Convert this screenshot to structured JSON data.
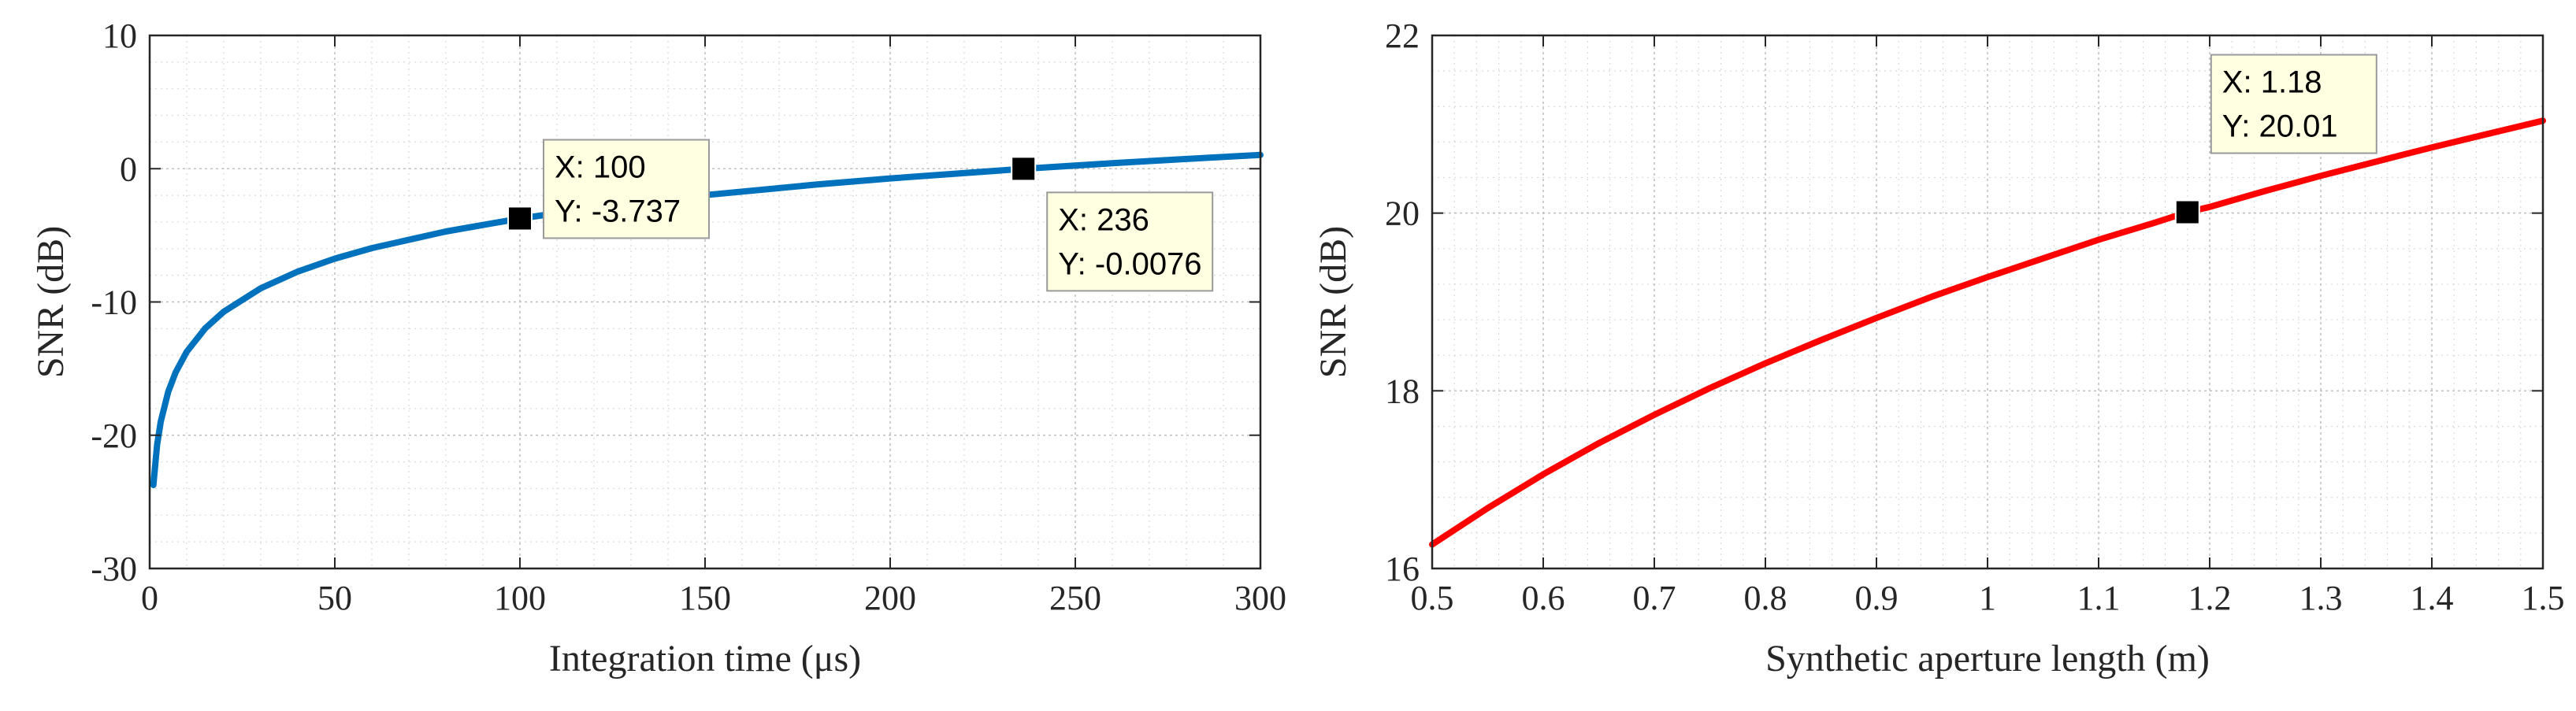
{
  "chart_data": [
    {
      "type": "line",
      "xlabel": "Integration time (μs)",
      "ylabel": "SNR (dB)",
      "xlim": [
        0,
        300
      ],
      "ylim": [
        -30,
        10
      ],
      "xticks": [
        0,
        50,
        100,
        150,
        200,
        250,
        300
      ],
      "xtick_labels": [
        "0",
        "50",
        "100",
        "150",
        "200",
        "250",
        "300"
      ],
      "yticks": [
        -30,
        -20,
        -10,
        0,
        10
      ],
      "ytick_labels": [
        "-30",
        "-20",
        "-10",
        "0",
        "10"
      ],
      "grid": true,
      "minor_grid": true,
      "series": [
        {
          "color": "#0072BD",
          "x": [
            1,
            2,
            3,
            5,
            7,
            10,
            15,
            20,
            30,
            40,
            50,
            60,
            80,
            100,
            120,
            150,
            180,
            200,
            236,
            260,
            280,
            300
          ],
          "y": [
            -23.74,
            -20.73,
            -18.97,
            -16.75,
            -15.29,
            -13.74,
            -11.98,
            -10.73,
            -8.97,
            -7.72,
            -6.75,
            -5.96,
            -4.71,
            -3.737,
            -2.95,
            -1.98,
            -1.19,
            -0.73,
            -0.0076,
            0.41,
            0.73,
            1.03
          ]
        }
      ],
      "datatips": [
        {
          "x": 100,
          "y": -3.737,
          "line1": "X: 100",
          "line2": "Y: -3.737"
        },
        {
          "x": 236,
          "y": -0.0076,
          "line1": "X: 236",
          "line2": "Y: -0.0076"
        }
      ]
    },
    {
      "type": "line",
      "xlabel": "Synthetic aperture length (m)",
      "ylabel": "SNR (dB)",
      "xlim": [
        0.5,
        1.5
      ],
      "ylim": [
        16,
        22
      ],
      "xticks": [
        0.5,
        0.6,
        0.7,
        0.8,
        0.9,
        1.0,
        1.1,
        1.2,
        1.3,
        1.4,
        1.5
      ],
      "xtick_labels": [
        "0.5",
        "0.6",
        "0.7",
        "0.8",
        "0.9",
        "1",
        "1.1",
        "1.2",
        "1.3",
        "1.4",
        "1.5"
      ],
      "yticks": [
        16,
        18,
        20,
        22
      ],
      "ytick_labels": [
        "16",
        "18",
        "20",
        "22"
      ],
      "grid": true,
      "minor_grid": true,
      "series": [
        {
          "color": "#FF0000",
          "x": [
            0.5,
            0.55,
            0.6,
            0.65,
            0.7,
            0.75,
            0.8,
            0.85,
            0.9,
            0.95,
            1.0,
            1.05,
            1.1,
            1.15,
            1.18,
            1.2,
            1.25,
            1.3,
            1.35,
            1.4,
            1.45,
            1.5
          ],
          "y": [
            16.27,
            16.68,
            17.06,
            17.41,
            17.73,
            18.03,
            18.31,
            18.57,
            18.82,
            19.06,
            19.28,
            19.49,
            19.7,
            19.89,
            20.01,
            20.07,
            20.25,
            20.42,
            20.58,
            20.74,
            20.89,
            21.04
          ]
        }
      ],
      "datatips": [
        {
          "x": 1.18,
          "y": 20.01,
          "line1": "X: 1.18",
          "line2": "Y: 20.01"
        }
      ]
    }
  ]
}
